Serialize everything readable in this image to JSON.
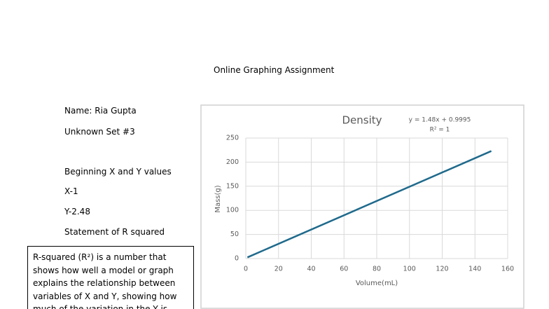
{
  "header": {
    "title": "Online Graphing Assignment"
  },
  "info": {
    "name": "Name: Ria Gupta",
    "set": "Unknown Set #3",
    "beginning": "Beginning X and Y values",
    "x": "X-1",
    "y": "Y-2.48",
    "statement": "Statement of R squared"
  },
  "box": {
    "text": "R-squared (R²) is a number that shows how well a model or graph explains the relationship between variables of X and Y, showing how much of the variation in the Y is"
  },
  "chart_data": {
    "type": "line",
    "title": "Density",
    "equation": "y = 1.48x + 0.9995",
    "r_squared": "R² = 1",
    "x_label": "Volume(mL)",
    "y_label": "Mass(g)",
    "x": [
      1,
      150
    ],
    "series": [
      {
        "color": "#1f6a8c",
        "values": [
          2.48,
          223
        ]
      }
    ],
    "xlim": [
      0,
      160
    ],
    "xticks": [
      0,
      20,
      40,
      60,
      80,
      100,
      120,
      140,
      160
    ],
    "ylim": [
      0,
      250
    ],
    "yticks": [
      0,
      50,
      100,
      150,
      200,
      250
    ],
    "grid": true
  }
}
